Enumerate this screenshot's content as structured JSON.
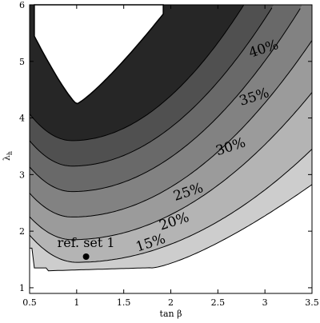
{
  "chart_data": {
    "type": "contour",
    "xlabel": "tan β",
    "ylabel_main": "λ",
    "ylabel_sub": "h",
    "xlim": [
      0.5,
      3.5
    ],
    "ylim": [
      0.9,
      6.0
    ],
    "xticks": [
      0.5,
      1,
      1.5,
      2,
      2.5,
      3,
      3.5
    ],
    "xtick_labels": [
      "0.5",
      "1",
      "1.5",
      "2",
      "2.5",
      "3",
      "3.5"
    ],
    "yticks": [
      1,
      2,
      3,
      4,
      5,
      6
    ],
    "ytick_labels": [
      "1",
      "2",
      "3",
      "4",
      "5",
      "6"
    ],
    "grid": false,
    "colors": {
      "band_15": "#cdcdcd",
      "band_20": "#b4b4b4",
      "band_25": "#9b9b9b",
      "band_30": "#828282",
      "band_35": "#696969",
      "band_40": "#505050",
      "band_top": "#262626",
      "contour_line": "#000000",
      "reference_point": "#000000"
    },
    "contour_labels": [
      {
        "text": "15%",
        "x": 1.8,
        "y": 1.72
      },
      {
        "text": "20%",
        "x": 2.05,
        "y": 2.1
      },
      {
        "text": "25%",
        "x": 2.2,
        "y": 2.62
      },
      {
        "text": "30%",
        "x": 2.65,
        "y": 3.42
      },
      {
        "text": "35%",
        "x": 2.9,
        "y": 4.3
      },
      {
        "text": "40%",
        "x": 3.0,
        "y": 5.15
      }
    ],
    "reference_point": {
      "label": "ref. set 1",
      "x": 1.1,
      "y": 1.55
    }
  }
}
